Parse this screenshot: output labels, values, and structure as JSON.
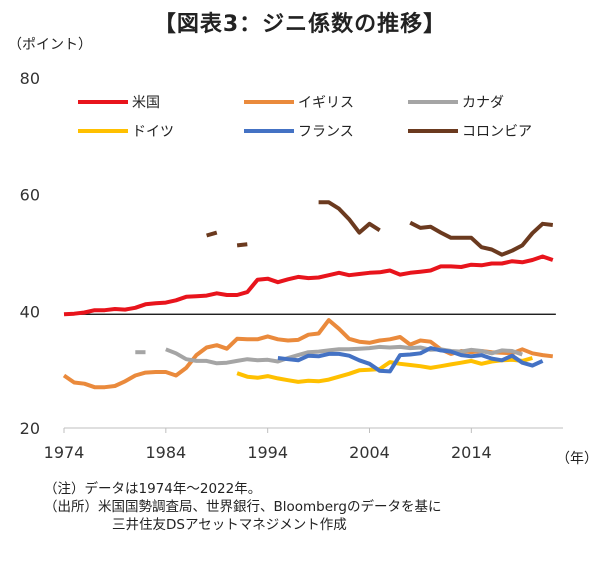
{
  "title": "【図表3：ジニ係数の推移】",
  "y_unit": "（ポイント）",
  "x_unit": "（年）",
  "notes": {
    "line1": "（注）データは1974年～2022年。",
    "line2": "（出所）米国国勢調査局、世界銀行、Bloombergのデータを基に",
    "line3": "三井住友DSアセットマネジメント作成"
  },
  "chart_data": {
    "type": "line",
    "title": "【図表3：ジニ係数の推移】",
    "xlabel": "（年）",
    "ylabel": "（ポイント）",
    "xlim": [
      1974,
      2023
    ],
    "ylim": [
      20,
      80
    ],
    "x_ticks": [
      "1974",
      "1984",
      "1994",
      "2004",
      "2014"
    ],
    "y_ticks": [
      "20",
      "40",
      "60",
      "80"
    ],
    "grid": false,
    "reference_line": 39.5,
    "legend_position": "top",
    "series": [
      {
        "name": "米国",
        "color": "#e8141c",
        "points": [
          [
            1974,
            39.5
          ],
          [
            1975,
            39.6
          ],
          [
            1976,
            39.8
          ],
          [
            1977,
            40.2
          ],
          [
            1978,
            40.2
          ],
          [
            1979,
            40.4
          ],
          [
            1980,
            40.3
          ],
          [
            1981,
            40.6
          ],
          [
            1982,
            41.2
          ],
          [
            1983,
            41.4
          ],
          [
            1984,
            41.5
          ],
          [
            1985,
            41.9
          ],
          [
            1986,
            42.5
          ],
          [
            1987,
            42.6
          ],
          [
            1988,
            42.7
          ],
          [
            1989,
            43.1
          ],
          [
            1990,
            42.8
          ],
          [
            1991,
            42.8
          ],
          [
            1992,
            43.3
          ],
          [
            1993,
            45.4
          ],
          [
            1994,
            45.6
          ],
          [
            1995,
            45.0
          ],
          [
            1996,
            45.5
          ],
          [
            1997,
            45.9
          ],
          [
            1998,
            45.7
          ],
          [
            1999,
            45.8
          ],
          [
            2000,
            46.2
          ],
          [
            2001,
            46.6
          ],
          [
            2002,
            46.2
          ],
          [
            2003,
            46.4
          ],
          [
            2004,
            46.6
          ],
          [
            2005,
            46.7
          ],
          [
            2006,
            47.0
          ],
          [
            2007,
            46.3
          ],
          [
            2008,
            46.6
          ],
          [
            2009,
            46.8
          ],
          [
            2010,
            47.0
          ],
          [
            2011,
            47.7
          ],
          [
            2012,
            47.7
          ],
          [
            2013,
            47.6
          ],
          [
            2014,
            48.0
          ],
          [
            2015,
            47.9
          ],
          [
            2016,
            48.2
          ],
          [
            2017,
            48.2
          ],
          [
            2018,
            48.6
          ],
          [
            2019,
            48.4
          ],
          [
            2020,
            48.8
          ],
          [
            2021,
            49.4
          ],
          [
            2022,
            48.8
          ]
        ]
      },
      {
        "name": "イギリス",
        "color": "#ea8a3c",
        "points": [
          [
            1974,
            29.0
          ],
          [
            1975,
            27.8
          ],
          [
            1976,
            27.6
          ],
          [
            1977,
            27.0
          ],
          [
            1978,
            27.0
          ],
          [
            1979,
            27.2
          ],
          [
            1980,
            28.0
          ],
          [
            1981,
            29.0
          ],
          [
            1982,
            29.5
          ],
          [
            1983,
            29.6
          ],
          [
            1984,
            29.6
          ],
          [
            1985,
            29.0
          ],
          [
            1986,
            30.3
          ],
          [
            1987,
            32.5
          ],
          [
            1988,
            33.8
          ],
          [
            1989,
            34.2
          ],
          [
            1990,
            33.6
          ],
          [
            1991,
            35.3
          ],
          [
            1992,
            35.2
          ],
          [
            1993,
            35.2
          ],
          [
            1994,
            35.7
          ],
          [
            1995,
            35.2
          ],
          [
            1996,
            35.0
          ],
          [
            1997,
            35.1
          ],
          [
            1998,
            36.0
          ],
          [
            1999,
            36.2
          ],
          [
            2000,
            38.5
          ],
          [
            2001,
            37.0
          ],
          [
            2002,
            35.3
          ],
          [
            2003,
            34.8
          ],
          [
            2004,
            34.6
          ],
          [
            2005,
            35.0
          ],
          [
            2006,
            35.2
          ],
          [
            2007,
            35.6
          ],
          [
            2008,
            34.3
          ],
          [
            2009,
            35.0
          ],
          [
            2010,
            34.8
          ],
          [
            2011,
            33.5
          ],
          [
            2012,
            32.7
          ],
          [
            2013,
            33.2
          ],
          [
            2014,
            33.0
          ],
          [
            2015,
            33.2
          ],
          [
            2016,
            33.0
          ],
          [
            2017,
            32.9
          ],
          [
            2018,
            32.8
          ],
          [
            2019,
            33.5
          ],
          [
            2020,
            32.8
          ],
          [
            2021,
            32.5
          ],
          [
            2022,
            32.3
          ]
        ]
      },
      {
        "name": "カナダ",
        "color": "#a5a5a5",
        "segments": [
          [
            [
              1981,
              33.0
            ],
            [
              1982,
              33.0
            ]
          ],
          [
            [
              1984,
              33.5
            ],
            [
              1985,
              32.8
            ],
            [
              1986,
              31.8
            ],
            [
              1987,
              31.5
            ],
            [
              1988,
              31.5
            ],
            [
              1989,
              31.1
            ],
            [
              1990,
              31.2
            ],
            [
              1991,
              31.5
            ],
            [
              1992,
              31.8
            ],
            [
              1993,
              31.6
            ],
            [
              1994,
              31.7
            ],
            [
              1995,
              31.4
            ],
            [
              1996,
              32.0
            ],
            [
              1997,
              32.5
            ],
            [
              1998,
              33.0
            ],
            [
              1999,
              33.1
            ],
            [
              2000,
              33.3
            ],
            [
              2001,
              33.5
            ],
            [
              2002,
              33.5
            ],
            [
              2003,
              33.6
            ],
            [
              2004,
              33.7
            ],
            [
              2005,
              33.9
            ],
            [
              2006,
              33.8
            ],
            [
              2007,
              33.9
            ],
            [
              2008,
              33.7
            ],
            [
              2009,
              33.8
            ],
            [
              2010,
              33.4
            ],
            [
              2011,
              33.5
            ],
            [
              2012,
              33.2
            ],
            [
              2013,
              33.1
            ],
            [
              2014,
              33.4
            ],
            [
              2015,
              33.2
            ],
            [
              2016,
              32.8
            ],
            [
              2017,
              33.3
            ],
            [
              2018,
              33.2
            ],
            [
              2019,
              32.6
            ]
          ]
        ]
      },
      {
        "name": "ドイツ",
        "color": "#ffc000",
        "points": [
          [
            1991,
            29.4
          ],
          [
            1992,
            28.8
          ],
          [
            1993,
            28.6
          ],
          [
            1994,
            28.9
          ],
          [
            1995,
            28.5
          ],
          [
            1996,
            28.2
          ],
          [
            1997,
            27.9
          ],
          [
            1998,
            28.1
          ],
          [
            1999,
            28.0
          ],
          [
            2000,
            28.3
          ],
          [
            2001,
            28.8
          ],
          [
            2002,
            29.3
          ],
          [
            2003,
            29.9
          ],
          [
            2004,
            30.0
          ],
          [
            2005,
            30.1
          ],
          [
            2006,
            31.3
          ],
          [
            2007,
            31.0
          ],
          [
            2008,
            30.8
          ],
          [
            2009,
            30.6
          ],
          [
            2010,
            30.3
          ],
          [
            2011,
            30.6
          ],
          [
            2012,
            30.9
          ],
          [
            2013,
            31.2
          ],
          [
            2014,
            31.5
          ],
          [
            2015,
            31.0
          ],
          [
            2016,
            31.4
          ],
          [
            2017,
            31.6
          ],
          [
            2018,
            31.7
          ],
          [
            2019,
            31.5
          ],
          [
            2020,
            32.0
          ]
        ]
      },
      {
        "name": "フランス",
        "color": "#4472c4",
        "points": [
          [
            1995,
            32.0
          ],
          [
            1996,
            31.8
          ],
          [
            1997,
            31.6
          ],
          [
            1998,
            32.4
          ],
          [
            1999,
            32.3
          ],
          [
            2000,
            32.7
          ],
          [
            2001,
            32.7
          ],
          [
            2002,
            32.4
          ],
          [
            2003,
            31.6
          ],
          [
            2004,
            31.0
          ],
          [
            2005,
            29.8
          ],
          [
            2006,
            29.7
          ],
          [
            2007,
            32.5
          ],
          [
            2008,
            32.6
          ],
          [
            2009,
            32.8
          ],
          [
            2010,
            33.7
          ],
          [
            2011,
            33.3
          ],
          [
            2012,
            33.1
          ],
          [
            2013,
            32.5
          ],
          [
            2014,
            32.3
          ],
          [
            2015,
            32.5
          ],
          [
            2016,
            31.9
          ],
          [
            2017,
            31.6
          ],
          [
            2018,
            32.4
          ],
          [
            2019,
            31.2
          ],
          [
            2020,
            30.7
          ],
          [
            2021,
            31.5
          ]
        ]
      },
      {
        "name": "コロンビア",
        "color": "#6b3a1f",
        "segments": [
          [
            [
              1988,
              53.0
            ],
            [
              1989,
              53.5
            ]
          ],
          [
            [
              1991,
              51.3
            ],
            [
              1992,
              51.5
            ]
          ],
          [
            [
              1999,
              58.7
            ],
            [
              2000,
              58.7
            ],
            [
              2001,
              57.6
            ],
            [
              2002,
              55.8
            ],
            [
              2003,
              53.5
            ],
            [
              2004,
              55.0
            ],
            [
              2005,
              53.9
            ]
          ],
          [
            [
              2008,
              55.2
            ],
            [
              2009,
              54.3
            ],
            [
              2010,
              54.5
            ],
            [
              2011,
              53.5
            ],
            [
              2012,
              52.6
            ],
            [
              2013,
              52.6
            ],
            [
              2014,
              52.6
            ],
            [
              2015,
              51.0
            ],
            [
              2016,
              50.6
            ],
            [
              2017,
              49.7
            ],
            [
              2018,
              50.4
            ],
            [
              2019,
              51.3
            ],
            [
              2020,
              53.4
            ],
            [
              2021,
              55.0
            ],
            [
              2022,
              54.8
            ]
          ]
        ]
      }
    ]
  }
}
